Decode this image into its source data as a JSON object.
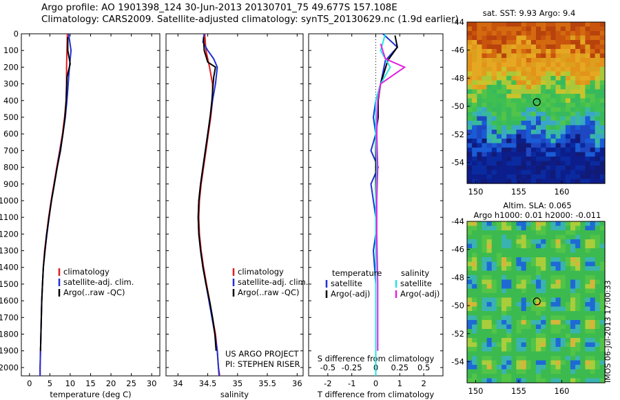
{
  "header": {
    "line1": "Argo profile: AO 1901398_124 30-Jun-2013 20130701_75 49.677S 157.108E",
    "line2": "Climatology: CARS2009. Satellite-adjusted climatology: synTS_20130629.nc (1.9d earlier)"
  },
  "colors": {
    "climatology": "#e41a1c",
    "satellite": "#1f2fd6",
    "argo": "#000000",
    "sat_sal": "#22e5e5",
    "argo_sal": "#e020e0"
  },
  "project": {
    "line1": "US ARGO PROJECT",
    "line2": "PI: STEPHEN RISER"
  },
  "side_stamp": "IMOS 06-Jul-2013 17:00:33",
  "chart_data": [
    {
      "type": "line",
      "id": "temperature",
      "xlabel": "temperature (deg C)",
      "ylabel": "",
      "xlim": [
        -2,
        32
      ],
      "ylim": [
        2050,
        0
      ],
      "xticks": [
        "0",
        "5",
        "10",
        "15",
        "20",
        "25",
        "30"
      ],
      "yticks": [
        "0",
        "100",
        "200",
        "300",
        "400",
        "500",
        "600",
        "700",
        "800",
        "900",
        "1000",
        "1100",
        "1200",
        "1300",
        "1400",
        "1500",
        "1600",
        "1700",
        "1800",
        "1900",
        "2000"
      ],
      "legend": [
        "climatology",
        "satellite-adj. clim.",
        "Argo(..raw -QC)"
      ],
      "series": [
        {
          "name": "climatology",
          "values": [
            [
              9.3,
              0
            ],
            [
              9.2,
              100
            ],
            [
              9.1,
              200
            ],
            [
              9.1,
              300
            ],
            [
              9,
              400
            ],
            [
              8.6,
              500
            ],
            [
              8.1,
              600
            ],
            [
              7.4,
              700
            ],
            [
              6.7,
              800
            ],
            [
              6,
              900
            ],
            [
              5.3,
              1000
            ],
            [
              4.7,
              1100
            ],
            [
              4.2,
              1200
            ],
            [
              3.7,
              1300
            ],
            [
              3.4,
              1400
            ],
            [
              3.2,
              1500
            ],
            [
              3.0,
              1600
            ],
            [
              2.9,
              1700
            ],
            [
              2.8,
              1800
            ],
            [
              2.7,
              1900
            ],
            [
              2.6,
              2000
            ],
            [
              2.6,
              2050
            ]
          ]
        },
        {
          "name": "satellite-adj. clim.",
          "values": [
            [
              9.6,
              0
            ],
            [
              10.2,
              100
            ],
            [
              9.8,
              200
            ],
            [
              9.5,
              300
            ],
            [
              9.2,
              400
            ],
            [
              8.8,
              500
            ],
            [
              8.2,
              600
            ],
            [
              7.5,
              700
            ],
            [
              6.8,
              800
            ],
            [
              6.1,
              900
            ],
            [
              5.4,
              1000
            ],
            [
              4.8,
              1100
            ],
            [
              4.3,
              1200
            ],
            [
              3.8,
              1300
            ],
            [
              3.4,
              1400
            ],
            [
              3.2,
              1500
            ],
            [
              3.0,
              1600
            ],
            [
              2.9,
              1700
            ],
            [
              2.8,
              1800
            ],
            [
              2.7,
              1900
            ],
            [
              2.6,
              2000
            ],
            [
              2.6,
              2050
            ]
          ]
        },
        {
          "name": "Argo(..raw -QC)",
          "values": [
            [
              9.4,
              20
            ],
            [
              9.4,
              100
            ],
            [
              10.0,
              180
            ],
            [
              9.2,
              260
            ],
            [
              9.0,
              400
            ],
            [
              8.7,
              500
            ],
            [
              8.2,
              600
            ],
            [
              7.6,
              700
            ],
            [
              6.8,
              800
            ],
            [
              6.1,
              900
            ],
            [
              5.4,
              1000
            ],
            [
              4.8,
              1100
            ],
            [
              4.2,
              1200
            ],
            [
              3.8,
              1300
            ],
            [
              3.4,
              1400
            ],
            [
              3.2,
              1500
            ],
            [
              3.0,
              1600
            ],
            [
              2.9,
              1700
            ],
            [
              2.8,
              1800
            ],
            [
              2.7,
              1900
            ]
          ]
        }
      ]
    },
    {
      "type": "line",
      "id": "salinity",
      "xlabel": "salinity",
      "ylabel": "",
      "xlim": [
        33.8,
        36.1
      ],
      "ylim": [
        2050,
        0
      ],
      "xticks": [
        "34",
        "34.5",
        "35",
        "35.5",
        "36"
      ],
      "legend": [
        "climatology",
        "satellite-adj. clim.",
        "Argo(..raw -QC)"
      ],
      "series": [
        {
          "name": "climatology",
          "values": [
            [
              34.45,
              0
            ],
            [
              34.47,
              100
            ],
            [
              34.53,
              200
            ],
            [
              34.58,
              300
            ],
            [
              34.58,
              400
            ],
            [
              34.55,
              500
            ],
            [
              34.51,
              600
            ],
            [
              34.47,
              700
            ],
            [
              34.43,
              800
            ],
            [
              34.39,
              900
            ],
            [
              34.36,
              1000
            ],
            [
              34.35,
              1100
            ],
            [
              34.36,
              1200
            ],
            [
              34.39,
              1300
            ],
            [
              34.43,
              1400
            ],
            [
              34.48,
              1500
            ],
            [
              34.53,
              1600
            ],
            [
              34.58,
              1700
            ],
            [
              34.63,
              1800
            ],
            [
              34.66,
              1900
            ],
            [
              34.68,
              2000
            ],
            [
              34.7,
              2050
            ]
          ]
        },
        {
          "name": "satellite-adj. clim.",
          "values": [
            [
              34.44,
              0
            ],
            [
              34.42,
              50
            ],
            [
              34.5,
              100
            ],
            [
              34.6,
              150
            ],
            [
              34.66,
              200
            ],
            [
              34.63,
              300
            ],
            [
              34.58,
              400
            ],
            [
              34.54,
              500
            ],
            [
              34.5,
              600
            ],
            [
              34.46,
              700
            ],
            [
              34.42,
              800
            ],
            [
              34.38,
              900
            ],
            [
              34.35,
              1000
            ],
            [
              34.34,
              1100
            ],
            [
              34.35,
              1200
            ],
            [
              34.38,
              1300
            ],
            [
              34.42,
              1400
            ],
            [
              34.47,
              1500
            ],
            [
              34.52,
              1600
            ],
            [
              34.57,
              1700
            ],
            [
              34.62,
              1800
            ],
            [
              34.66,
              1900
            ],
            [
              34.68,
              2000
            ],
            [
              34.69,
              2050
            ]
          ]
        },
        {
          "name": "Argo(..raw -QC)",
          "values": [
            [
              34.43,
              20
            ],
            [
              34.44,
              100
            ],
            [
              34.5,
              170
            ],
            [
              34.63,
              200
            ],
            [
              34.6,
              260
            ],
            [
              34.57,
              400
            ],
            [
              34.54,
              500
            ],
            [
              34.5,
              600
            ],
            [
              34.46,
              700
            ],
            [
              34.42,
              800
            ],
            [
              34.38,
              900
            ],
            [
              34.35,
              1000
            ],
            [
              34.34,
              1100
            ],
            [
              34.35,
              1200
            ],
            [
              34.38,
              1300
            ],
            [
              34.42,
              1400
            ],
            [
              34.47,
              1500
            ],
            [
              34.53,
              1600
            ],
            [
              34.58,
              1700
            ],
            [
              34.62,
              1800
            ],
            [
              34.64,
              1900
            ]
          ]
        }
      ]
    },
    {
      "type": "line",
      "id": "difference",
      "xlabel": "T difference from climatology",
      "x2label": "S difference from climatology",
      "ylim": [
        2050,
        0
      ],
      "xlim": [
        -2.8,
        2.8
      ],
      "x2lim": [
        -0.7,
        0.7
      ],
      "xticks": [
        "-2",
        "-1",
        "0",
        "1",
        "2"
      ],
      "x2ticks": [
        "-0.5",
        "-0.25",
        "0",
        "0.25",
        "0.5"
      ],
      "legend_left_title": "temperature",
      "legend_right_title": "salinity",
      "legend_left": [
        "satellite",
        "Argo(-adj)"
      ],
      "legend_right": [
        "satellite",
        "Argo(-adj)"
      ],
      "series": [
        {
          "name": "T satellite",
          "values": [
            [
              0.3,
              0
            ],
            [
              0.9,
              80
            ],
            [
              0.4,
              160
            ],
            [
              0.2,
              300
            ],
            [
              0,
              400
            ],
            [
              -0.1,
              500
            ],
            [
              0,
              600
            ],
            [
              -0.2,
              700
            ],
            [
              0.1,
              800
            ],
            [
              -0.2,
              900
            ],
            [
              -0.1,
              1000
            ],
            [
              0,
              1100
            ],
            [
              0,
              1200
            ],
            [
              -0.1,
              1300
            ],
            [
              0,
              1500
            ],
            [
              0,
              2050
            ]
          ]
        },
        {
          "name": "T Argo(-adj)",
          "values": [
            [
              0.8,
              10
            ],
            [
              0.9,
              80
            ],
            [
              0.5,
              160
            ],
            [
              0.2,
              300
            ],
            [
              0.1,
              400
            ],
            [
              0.1,
              500
            ],
            [
              0,
              600
            ],
            [
              0,
              800
            ],
            [
              0,
              1000
            ],
            [
              0,
              1200
            ],
            [
              0,
              1400
            ],
            [
              0,
              1600
            ],
            [
              0,
              1900
            ]
          ]
        },
        {
          "name": "S satellite",
          "values": [
            [
              0.1,
              0
            ],
            [
              0.05,
              100
            ],
            [
              0.15,
              200
            ],
            [
              0.05,
              300
            ],
            [
              0,
              400
            ],
            [
              0,
              600
            ],
            [
              0.01,
              800
            ],
            [
              0,
              1000
            ],
            [
              0,
              1200
            ],
            [
              0,
              1500
            ],
            [
              0,
              2050
            ]
          ]
        },
        {
          "name": "S Argo(-adj)",
          "values": [
            [
              0.05,
              60
            ],
            [
              0.1,
              150
            ],
            [
              0.3,
              200
            ],
            [
              0.05,
              300
            ],
            [
              0.02,
              400
            ],
            [
              0.01,
              600
            ],
            [
              0.02,
              800
            ],
            [
              0.01,
              1000
            ],
            [
              0.01,
              1200
            ],
            [
              0.02,
              1500
            ],
            [
              0.02,
              1900
            ]
          ]
        }
      ]
    },
    {
      "type": "heatmap",
      "id": "sst_map",
      "title": "sat. SST: 9.93 Argo: 9.4",
      "xticks": [
        "150",
        "155",
        "160"
      ],
      "yticks": [
        "-44",
        "-46",
        "-48",
        "-50",
        "-52",
        "-54"
      ],
      "xlim": [
        149,
        165
      ],
      "ylim": [
        -55.5,
        -44
      ],
      "marker": [
        157.1,
        -49.7
      ]
    },
    {
      "type": "heatmap",
      "id": "sla_map",
      "title": "Altim. SLA: 0.065",
      "subtitle": "Argo h1000: 0.01 h2000: -0.011",
      "xticks": [
        "150",
        "155",
        "160"
      ],
      "yticks": [
        "-44",
        "-46",
        "-48",
        "-50",
        "-52",
        "-54"
      ],
      "xlim": [
        149,
        165
      ],
      "ylim": [
        -55.5,
        -44
      ],
      "marker": [
        157.1,
        -49.7
      ]
    }
  ]
}
